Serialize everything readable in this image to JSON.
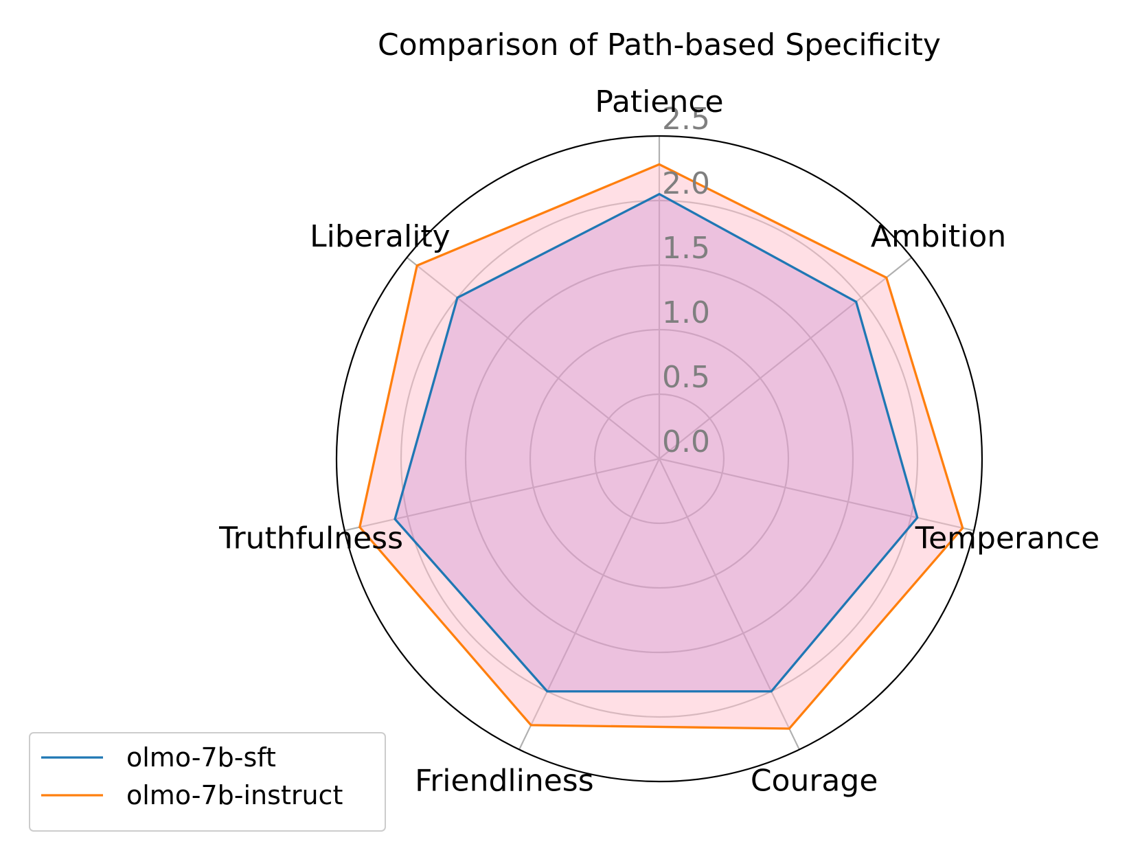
{
  "chart_data": {
    "type": "radar",
    "title": "Comparison of Path-based Specificity",
    "categories": [
      "Patience",
      "Ambition",
      "Temperance",
      "Courage",
      "Friendliness",
      "Truthfulness",
      "Liberality"
    ],
    "rticks": [
      "0.0",
      "0.5",
      "1.0",
      "1.5",
      "2.0",
      "2.5"
    ],
    "rtick_values": [
      0.0,
      0.5,
      1.0,
      1.5,
      2.0,
      2.5
    ],
    "rlim": [
      0,
      2.5
    ],
    "grid": true,
    "legend_position": "lower-left",
    "series": [
      {
        "name": "olmo-7b-sft",
        "color": "#1f77b4",
        "fill": "#b366cc",
        "values": [
          2.05,
          1.95,
          2.05,
          2.0,
          2.0,
          2.1,
          2.0
        ]
      },
      {
        "name": "olmo-7b-instruct",
        "color": "#ff7f0e",
        "fill": "#ffc0cb",
        "values": [
          2.28,
          2.25,
          2.41,
          2.32,
          2.29,
          2.38,
          2.4
        ]
      }
    ]
  }
}
